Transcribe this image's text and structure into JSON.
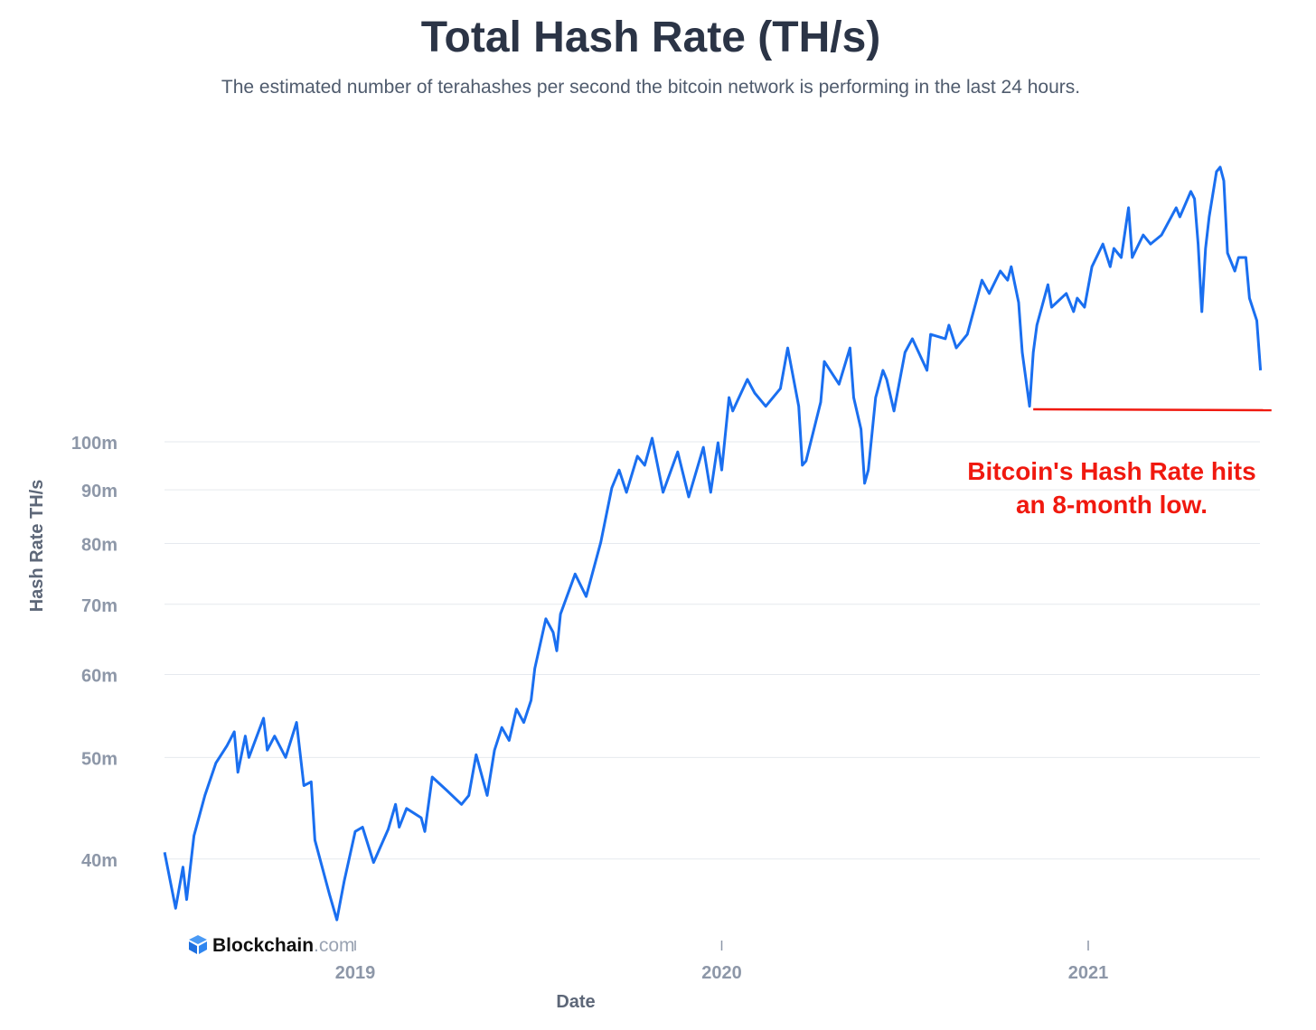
{
  "chart_data": {
    "type": "line",
    "title": "Total Hash Rate (TH/s)",
    "subtitle": "The estimated number of terahashes per second the bitcoin network is performing in the last 24 hours.",
    "xlabel": "Date",
    "ylabel": "Hash Rate TH/s",
    "yscale": "log",
    "ylim_millions": [
      33,
      190
    ],
    "xlim_years": [
      2018.48,
      2021.48
    ],
    "y_ticks": [
      {
        "value": 100,
        "label": "100m"
      },
      {
        "value": 90,
        "label": "90m"
      },
      {
        "value": 80,
        "label": "80m"
      },
      {
        "value": 70,
        "label": "70m"
      },
      {
        "value": 60,
        "label": "60m"
      },
      {
        "value": 50,
        "label": "50m"
      },
      {
        "value": 40,
        "label": "40m"
      }
    ],
    "x_ticks": [
      {
        "value": 2019,
        "label": "2019"
      },
      {
        "value": 2020,
        "label": "2020"
      },
      {
        "value": 2021,
        "label": "2021"
      }
    ],
    "grid": true,
    "series": [
      {
        "name": "Hash Rate",
        "color": "#1a6ff0",
        "unit": "million TH/s",
        "x": [
          2018.48,
          2018.51,
          2018.53,
          2018.54,
          2018.56,
          2018.59,
          2018.62,
          2018.65,
          2018.67,
          2018.68,
          2018.7,
          2018.71,
          2018.75,
          2018.76,
          2018.78,
          2018.81,
          2018.84,
          2018.86,
          2018.88,
          2018.89,
          2018.93,
          2018.95,
          2018.97,
          2019.0,
          2019.02,
          2019.05,
          2019.09,
          2019.11,
          2019.12,
          2019.14,
          2019.18,
          2019.19,
          2019.21,
          2019.25,
          2019.29,
          2019.31,
          2019.33,
          2019.36,
          2019.38,
          2019.4,
          2019.42,
          2019.44,
          2019.46,
          2019.48,
          2019.49,
          2019.52,
          2019.54,
          2019.55,
          2019.56,
          2019.6,
          2019.63,
          2019.67,
          2019.7,
          2019.72,
          2019.74,
          2019.77,
          2019.79,
          2019.81,
          2019.84,
          2019.88,
          2019.91,
          2019.95,
          2019.97,
          2019.99,
          2020.0,
          2020.02,
          2020.03,
          2020.07,
          2020.09,
          2020.12,
          2020.16,
          2020.18,
          2020.21,
          2020.22,
          2020.23,
          2020.27,
          2020.28,
          2020.32,
          2020.35,
          2020.36,
          2020.38,
          2020.39,
          2020.4,
          2020.42,
          2020.44,
          2020.45,
          2020.47,
          2020.5,
          2020.52,
          2020.56,
          2020.57,
          2020.61,
          2020.62,
          2020.64,
          2020.67,
          2020.71,
          2020.73,
          2020.76,
          2020.78,
          2020.79,
          2020.81,
          2020.82,
          2020.84,
          2020.85,
          2020.86,
          2020.89,
          2020.9,
          2020.94,
          2020.96,
          2020.97,
          2020.99,
          2021.01,
          2021.04,
          2021.06,
          2021.07,
          2021.09,
          2021.11,
          2021.12,
          2021.15,
          2021.17,
          2021.2,
          2021.24,
          2021.25,
          2021.28,
          2021.29,
          2021.3,
          2021.31,
          2021.32,
          2021.33,
          2021.35,
          2021.36,
          2021.37,
          2021.38,
          2021.4,
          2021.41,
          2021.43,
          2021.44,
          2021.46,
          2021.47
        ],
        "y": [
          40.6,
          35.9,
          39.3,
          36.6,
          42.1,
          46.0,
          49.4,
          51.3,
          52.9,
          48.4,
          52.4,
          50.0,
          54.5,
          50.8,
          52.4,
          50.0,
          54.0,
          47.0,
          47.4,
          41.7,
          37.0,
          35.0,
          38.1,
          42.5,
          42.9,
          39.7,
          42.7,
          45.1,
          42.9,
          44.7,
          43.8,
          42.5,
          47.9,
          46.5,
          45.1,
          46.0,
          50.3,
          46.0,
          50.8,
          53.4,
          51.9,
          55.6,
          54.0,
          56.7,
          60.8,
          67.8,
          65.8,
          63.2,
          68.5,
          74.8,
          71.2,
          80.2,
          90.4,
          94.0,
          89.5,
          96.9,
          95.0,
          100.8,
          89.5,
          97.8,
          88.6,
          98.8,
          89.5,
          99.8,
          94.0,
          110.2,
          107.0,
          114.7,
          111.3,
          108.1,
          112.4,
          122.9,
          108.1,
          95.0,
          95.9,
          109.1,
          119.3,
          113.5,
          122.9,
          110.2,
          102.8,
          91.3,
          94.0,
          110.2,
          117.0,
          114.7,
          107.0,
          121.7,
          125.4,
          117.0,
          126.6,
          125.4,
          129.2,
          122.9,
          126.6,
          142.6,
          138.5,
          145.5,
          142.6,
          146.9,
          135.8,
          121.7,
          108.1,
          121.7,
          129.2,
          141.2,
          134.4,
          138.5,
          133.1,
          137.1,
          134.4,
          146.9,
          154.4,
          146.9,
          152.9,
          149.9,
          167.2,
          149.9,
          157.5,
          154.4,
          157.5,
          167.2,
          163.9,
          173.3,
          170.5,
          154.4,
          133.1,
          152.9,
          163.9,
          181.0,
          182.8,
          177.4,
          151.4,
          145.5,
          149.9,
          149.9,
          137.1,
          130.5,
          117.0
        ]
      }
    ],
    "annotations": [
      {
        "text_line1": "Bitcoin's Hash Rate hits",
        "text_line2": "an 8-month low.",
        "color": "#f0190f",
        "reference_line_value": 107.4,
        "reference_line_x_range": [
          2020.85,
          2021.5
        ]
      }
    ],
    "logo": {
      "name": "Blockchain",
      "suffix": ".com"
    }
  }
}
